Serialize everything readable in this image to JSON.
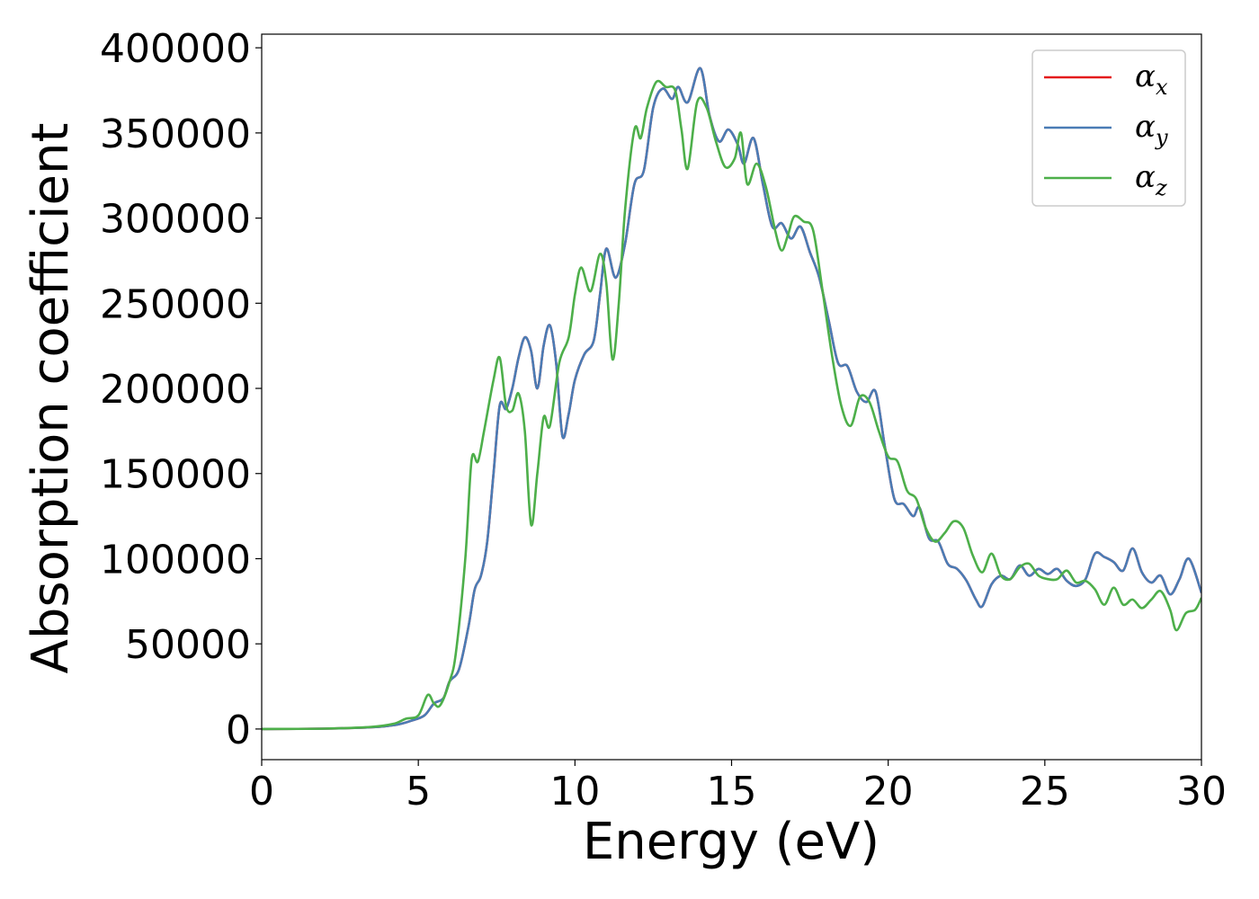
{
  "chart_data": {
    "type": "line",
    "title": "",
    "xlabel": "Energy (eV)",
    "ylabel": "Absorption coefficient",
    "xlim": [
      0,
      30
    ],
    "ylim": [
      -18000,
      408000
    ],
    "xticks": [
      0,
      5,
      10,
      15,
      20,
      25,
      30
    ],
    "xtick_labels": [
      "0",
      "5",
      "10",
      "15",
      "20",
      "25",
      "30"
    ],
    "yticks": [
      0,
      50000,
      100000,
      150000,
      200000,
      250000,
      300000,
      350000,
      400000
    ],
    "ytick_labels": [
      "0",
      "50000",
      "100000",
      "150000",
      "200000",
      "250000",
      "300000",
      "350000",
      "400000"
    ],
    "grid": false,
    "legend_position": "top-right",
    "series": [
      {
        "name": "α_x",
        "legend_symbol": "α",
        "legend_sub": "x",
        "color": "#e41a1c",
        "points": [
          [
            0,
            0
          ],
          [
            2,
            200
          ],
          [
            3.5,
            1000
          ],
          [
            4.3,
            2500
          ],
          [
            4.8,
            5000
          ],
          [
            5.2,
            8000
          ],
          [
            5.5,
            15000
          ],
          [
            5.8,
            18000
          ],
          [
            6.0,
            28000
          ],
          [
            6.3,
            35000
          ],
          [
            6.6,
            60000
          ],
          [
            6.8,
            82000
          ],
          [
            7.0,
            90000
          ],
          [
            7.2,
            110000
          ],
          [
            7.4,
            150000
          ],
          [
            7.6,
            190000
          ],
          [
            7.8,
            188000
          ],
          [
            8.0,
            200000
          ],
          [
            8.2,
            218000
          ],
          [
            8.4,
            230000
          ],
          [
            8.6,
            222000
          ],
          [
            8.8,
            200000
          ],
          [
            9.0,
            225000
          ],
          [
            9.2,
            237000
          ],
          [
            9.4,
            215000
          ],
          [
            9.6,
            172000
          ],
          [
            9.8,
            185000
          ],
          [
            10.0,
            205000
          ],
          [
            10.3,
            220000
          ],
          [
            10.6,
            228000
          ],
          [
            10.8,
            255000
          ],
          [
            11.0,
            282000
          ],
          [
            11.3,
            265000
          ],
          [
            11.6,
            285000
          ],
          [
            11.9,
            320000
          ],
          [
            12.2,
            328000
          ],
          [
            12.5,
            365000
          ],
          [
            12.8,
            376000
          ],
          [
            13.1,
            370000
          ],
          [
            13.3,
            377000
          ],
          [
            13.6,
            368000
          ],
          [
            14.0,
            388000
          ],
          [
            14.3,
            360000
          ],
          [
            14.6,
            345000
          ],
          [
            14.9,
            352000
          ],
          [
            15.2,
            343000
          ],
          [
            15.4,
            332000
          ],
          [
            15.7,
            347000
          ],
          [
            16.0,
            320000
          ],
          [
            16.3,
            295000
          ],
          [
            16.6,
            297000
          ],
          [
            16.9,
            288000
          ],
          [
            17.2,
            295000
          ],
          [
            17.5,
            280000
          ],
          [
            17.8,
            265000
          ],
          [
            18.1,
            240000
          ],
          [
            18.4,
            215000
          ],
          [
            18.7,
            213000
          ],
          [
            19.0,
            198000
          ],
          [
            19.3,
            192000
          ],
          [
            19.6,
            198000
          ],
          [
            19.9,
            165000
          ],
          [
            20.2,
            135000
          ],
          [
            20.5,
            132000
          ],
          [
            20.8,
            125000
          ],
          [
            21.0,
            130000
          ],
          [
            21.3,
            112000
          ],
          [
            21.6,
            110000
          ],
          [
            21.9,
            97000
          ],
          [
            22.2,
            94000
          ],
          [
            22.5,
            87000
          ],
          [
            22.8,
            76000
          ],
          [
            23.0,
            72000
          ],
          [
            23.3,
            85000
          ],
          [
            23.6,
            90000
          ],
          [
            23.9,
            88000
          ],
          [
            24.2,
            96000
          ],
          [
            24.5,
            90000
          ],
          [
            24.8,
            94000
          ],
          [
            25.1,
            91000
          ],
          [
            25.4,
            94000
          ],
          [
            25.7,
            87000
          ],
          [
            26.0,
            84000
          ],
          [
            26.3,
            88000
          ],
          [
            26.6,
            103000
          ],
          [
            26.9,
            101000
          ],
          [
            27.2,
            98000
          ],
          [
            27.5,
            93000
          ],
          [
            27.8,
            106000
          ],
          [
            28.1,
            92000
          ],
          [
            28.4,
            86000
          ],
          [
            28.7,
            90000
          ],
          [
            29.0,
            79000
          ],
          [
            29.3,
            88000
          ],
          [
            29.6,
            100000
          ],
          [
            30.0,
            80000
          ]
        ]
      },
      {
        "name": "α_y",
        "legend_symbol": "α",
        "legend_sub": "y",
        "color": "#4a7cb5",
        "points": [
          [
            0,
            0
          ],
          [
            2,
            200
          ],
          [
            3.5,
            1000
          ],
          [
            4.3,
            2500
          ],
          [
            4.8,
            5000
          ],
          [
            5.2,
            8000
          ],
          [
            5.5,
            15000
          ],
          [
            5.8,
            18000
          ],
          [
            6.0,
            28000
          ],
          [
            6.3,
            35000
          ],
          [
            6.6,
            60000
          ],
          [
            6.8,
            82000
          ],
          [
            7.0,
            90000
          ],
          [
            7.2,
            110000
          ],
          [
            7.4,
            150000
          ],
          [
            7.6,
            190000
          ],
          [
            7.8,
            188000
          ],
          [
            8.0,
            200000
          ],
          [
            8.2,
            218000
          ],
          [
            8.4,
            230000
          ],
          [
            8.6,
            222000
          ],
          [
            8.8,
            200000
          ],
          [
            9.0,
            225000
          ],
          [
            9.2,
            237000
          ],
          [
            9.4,
            215000
          ],
          [
            9.6,
            172000
          ],
          [
            9.8,
            185000
          ],
          [
            10.0,
            205000
          ],
          [
            10.3,
            220000
          ],
          [
            10.6,
            228000
          ],
          [
            10.8,
            255000
          ],
          [
            11.0,
            282000
          ],
          [
            11.3,
            265000
          ],
          [
            11.6,
            285000
          ],
          [
            11.9,
            320000
          ],
          [
            12.2,
            328000
          ],
          [
            12.5,
            365000
          ],
          [
            12.8,
            376000
          ],
          [
            13.1,
            370000
          ],
          [
            13.3,
            377000
          ],
          [
            13.6,
            368000
          ],
          [
            14.0,
            388000
          ],
          [
            14.3,
            360000
          ],
          [
            14.6,
            345000
          ],
          [
            14.9,
            352000
          ],
          [
            15.2,
            343000
          ],
          [
            15.4,
            332000
          ],
          [
            15.7,
            347000
          ],
          [
            16.0,
            320000
          ],
          [
            16.3,
            295000
          ],
          [
            16.6,
            297000
          ],
          [
            16.9,
            288000
          ],
          [
            17.2,
            295000
          ],
          [
            17.5,
            280000
          ],
          [
            17.8,
            265000
          ],
          [
            18.1,
            240000
          ],
          [
            18.4,
            215000
          ],
          [
            18.7,
            213000
          ],
          [
            19.0,
            198000
          ],
          [
            19.3,
            192000
          ],
          [
            19.6,
            198000
          ],
          [
            19.9,
            165000
          ],
          [
            20.2,
            135000
          ],
          [
            20.5,
            132000
          ],
          [
            20.8,
            125000
          ],
          [
            21.0,
            130000
          ],
          [
            21.3,
            112000
          ],
          [
            21.6,
            110000
          ],
          [
            21.9,
            97000
          ],
          [
            22.2,
            94000
          ],
          [
            22.5,
            87000
          ],
          [
            22.8,
            76000
          ],
          [
            23.0,
            72000
          ],
          [
            23.3,
            85000
          ],
          [
            23.6,
            90000
          ],
          [
            23.9,
            88000
          ],
          [
            24.2,
            96000
          ],
          [
            24.5,
            90000
          ],
          [
            24.8,
            94000
          ],
          [
            25.1,
            91000
          ],
          [
            25.4,
            94000
          ],
          [
            25.7,
            87000
          ],
          [
            26.0,
            84000
          ],
          [
            26.3,
            88000
          ],
          [
            26.6,
            103000
          ],
          [
            26.9,
            101000
          ],
          [
            27.2,
            98000
          ],
          [
            27.5,
            93000
          ],
          [
            27.8,
            106000
          ],
          [
            28.1,
            92000
          ],
          [
            28.4,
            86000
          ],
          [
            28.7,
            90000
          ],
          [
            29.0,
            79000
          ],
          [
            29.3,
            88000
          ],
          [
            29.6,
            100000
          ],
          [
            30.0,
            80000
          ]
        ]
      },
      {
        "name": "α_z",
        "legend_symbol": "α",
        "legend_sub": "z",
        "color": "#4daf4a",
        "points": [
          [
            0,
            0
          ],
          [
            2,
            200
          ],
          [
            3.5,
            1200
          ],
          [
            4.2,
            3000
          ],
          [
            4.6,
            6000
          ],
          [
            5.0,
            8000
          ],
          [
            5.3,
            20000
          ],
          [
            5.5,
            15000
          ],
          [
            5.7,
            14000
          ],
          [
            6.0,
            28000
          ],
          [
            6.2,
            45000
          ],
          [
            6.5,
            100000
          ],
          [
            6.7,
            158000
          ],
          [
            6.9,
            157000
          ],
          [
            7.1,
            175000
          ],
          [
            7.4,
            205000
          ],
          [
            7.6,
            218000
          ],
          [
            7.8,
            190000
          ],
          [
            8.0,
            187000
          ],
          [
            8.2,
            197000
          ],
          [
            8.4,
            175000
          ],
          [
            8.6,
            120000
          ],
          [
            8.8,
            150000
          ],
          [
            9.0,
            183000
          ],
          [
            9.2,
            178000
          ],
          [
            9.5,
            215000
          ],
          [
            9.8,
            230000
          ],
          [
            10.0,
            255000
          ],
          [
            10.2,
            271000
          ],
          [
            10.5,
            257000
          ],
          [
            10.8,
            279000
          ],
          [
            11.0,
            262000
          ],
          [
            11.2,
            217000
          ],
          [
            11.4,
            250000
          ],
          [
            11.6,
            305000
          ],
          [
            11.9,
            352000
          ],
          [
            12.1,
            347000
          ],
          [
            12.3,
            365000
          ],
          [
            12.6,
            380000
          ],
          [
            12.9,
            377000
          ],
          [
            13.2,
            375000
          ],
          [
            13.4,
            352000
          ],
          [
            13.6,
            329000
          ],
          [
            13.9,
            368000
          ],
          [
            14.2,
            365000
          ],
          [
            14.5,
            345000
          ],
          [
            14.8,
            330000
          ],
          [
            15.1,
            335000
          ],
          [
            15.3,
            350000
          ],
          [
            15.5,
            320000
          ],
          [
            15.8,
            332000
          ],
          [
            16.1,
            318000
          ],
          [
            16.4,
            292000
          ],
          [
            16.6,
            281000
          ],
          [
            16.8,
            290000
          ],
          [
            17.0,
            301000
          ],
          [
            17.3,
            298000
          ],
          [
            17.6,
            293000
          ],
          [
            17.9,
            258000
          ],
          [
            18.2,
            220000
          ],
          [
            18.5,
            190000
          ],
          [
            18.8,
            178000
          ],
          [
            19.1,
            195000
          ],
          [
            19.4,
            192000
          ],
          [
            19.7,
            175000
          ],
          [
            20.0,
            160000
          ],
          [
            20.3,
            157000
          ],
          [
            20.6,
            140000
          ],
          [
            20.9,
            135000
          ],
          [
            21.2,
            118000
          ],
          [
            21.5,
            110000
          ],
          [
            21.8,
            115000
          ],
          [
            22.1,
            122000
          ],
          [
            22.4,
            118000
          ],
          [
            22.7,
            102000
          ],
          [
            23.0,
            92000
          ],
          [
            23.3,
            103000
          ],
          [
            23.6,
            90000
          ],
          [
            23.9,
            88000
          ],
          [
            24.2,
            95000
          ],
          [
            24.5,
            97000
          ],
          [
            24.8,
            90000
          ],
          [
            25.1,
            88000
          ],
          [
            25.4,
            88000
          ],
          [
            25.7,
            93000
          ],
          [
            26.0,
            86000
          ],
          [
            26.3,
            87000
          ],
          [
            26.6,
            82000
          ],
          [
            26.9,
            73000
          ],
          [
            27.2,
            83000
          ],
          [
            27.5,
            73000
          ],
          [
            27.8,
            76000
          ],
          [
            28.1,
            71000
          ],
          [
            28.4,
            76000
          ],
          [
            28.7,
            81000
          ],
          [
            29.0,
            70000
          ],
          [
            29.2,
            58000
          ],
          [
            29.5,
            68000
          ],
          [
            29.8,
            70000
          ],
          [
            30.0,
            77000
          ]
        ]
      }
    ]
  }
}
